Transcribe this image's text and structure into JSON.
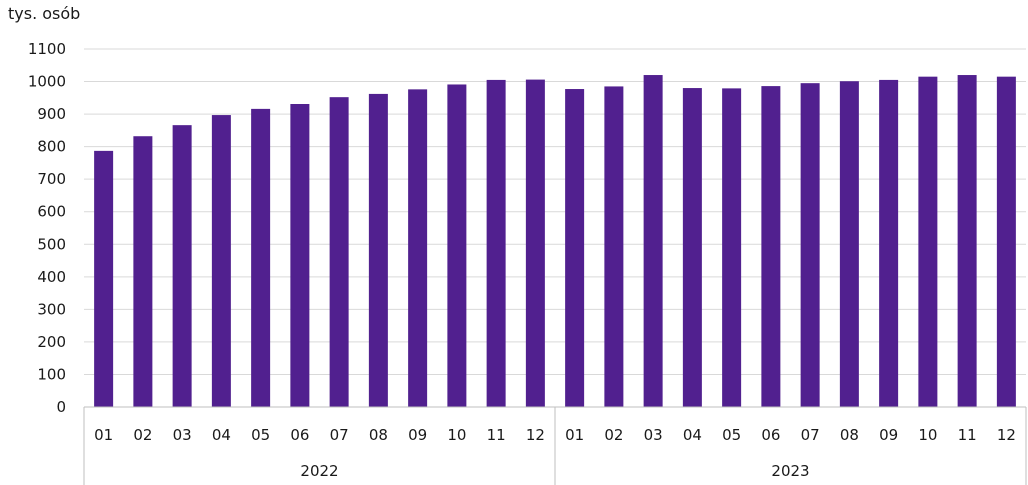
{
  "chart_data": {
    "type": "bar",
    "unit_label": "tys. osób",
    "categories": [
      "01",
      "02",
      "03",
      "04",
      "05",
      "06",
      "07",
      "08",
      "09",
      "10",
      "11",
      "12",
      "01",
      "02",
      "03",
      "04",
      "05",
      "06",
      "07",
      "08",
      "09",
      "10",
      "11",
      "12"
    ],
    "groups": [
      {
        "label": "2022",
        "count": 12
      },
      {
        "label": "2023",
        "count": 12
      }
    ],
    "values": [
      787,
      832,
      866,
      897,
      916,
      931,
      952,
      962,
      976,
      991,
      1005,
      1006,
      977,
      985,
      1020,
      980,
      979,
      986,
      995,
      1001,
      1005,
      1015,
      1020,
      1015
    ],
    "ylim": [
      0,
      1100
    ],
    "yticks": [
      0,
      100,
      200,
      300,
      400,
      500,
      600,
      700,
      800,
      900,
      1000,
      1100
    ],
    "bar_color": "#51208f",
    "grid": true
  }
}
